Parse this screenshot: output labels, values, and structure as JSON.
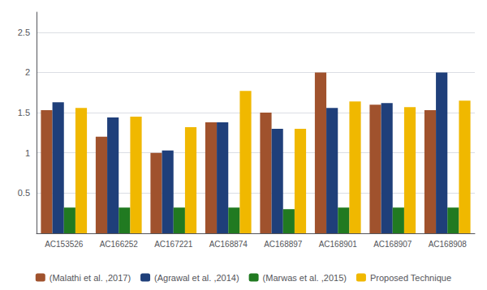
{
  "chart_data": {
    "type": "bar",
    "categories": [
      "AC153526",
      "AC166252",
      "AC167221",
      "AC168874",
      "AC168897",
      "AC168901",
      "AC168907",
      "AC168908"
    ],
    "series": [
      {
        "name": "(Malathi et al. ,2017)",
        "color": "#A0522D",
        "values": [
          1.53,
          1.2,
          1.0,
          1.38,
          1.5,
          2.0,
          1.6,
          1.53
        ]
      },
      {
        "name": "(Agrawal et al. ,2014)",
        "color": "#1F3F7A",
        "values": [
          1.63,
          1.44,
          1.03,
          1.38,
          1.3,
          1.56,
          1.62,
          2.0
        ]
      },
      {
        "name": "(Marwas et al. ,2015)",
        "color": "#217A21",
        "values": [
          0.32,
          0.32,
          0.32,
          0.32,
          0.3,
          0.32,
          0.32,
          0.32
        ]
      },
      {
        "name": "Proposed Technique",
        "color": "#F0B800",
        "values": [
          1.56,
          1.45,
          1.32,
          1.77,
          1.3,
          1.64,
          1.57,
          1.65
        ]
      }
    ],
    "ylim": [
      0,
      2.75
    ],
    "yticks": [
      0.5,
      1,
      1.5,
      2,
      2.5
    ],
    "grid": true,
    "legend": "bottom"
  }
}
